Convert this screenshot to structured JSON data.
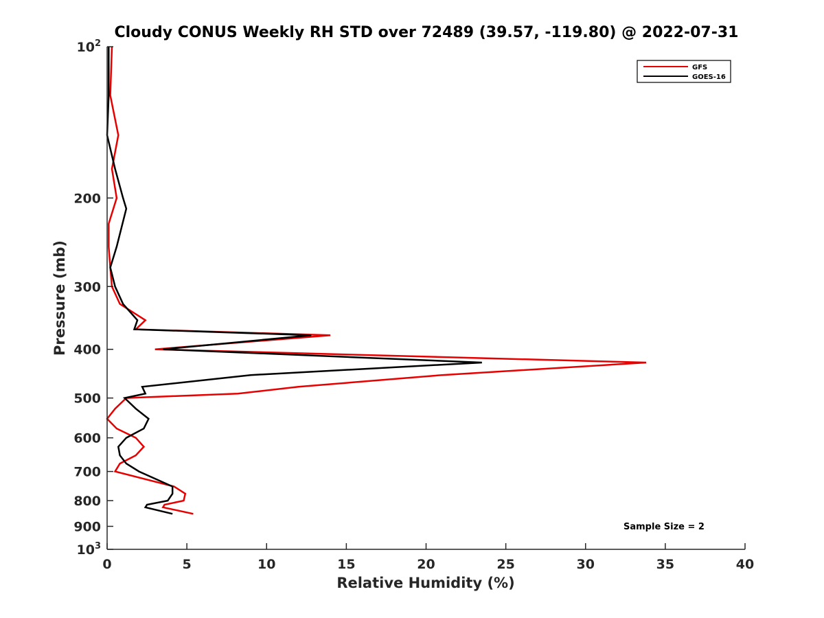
{
  "chart_data": {
    "type": "line",
    "title": "Cloudy CONUS Weekly RH STD over 72489 (39.57, -119.80) @ 2022-07-31",
    "xlabel": "Relative Humidity (%)",
    "ylabel": "Pressure (mb)",
    "xlim": [
      0,
      40
    ],
    "ylim": [
      100,
      1000
    ],
    "yscale": "log",
    "yreversed": true,
    "x_ticks": [
      "0",
      "5",
      "10",
      "15",
      "20",
      "25",
      "30",
      "35",
      "40"
    ],
    "y_ticks": [
      {
        "value": 100,
        "base": "10",
        "exp": "2"
      },
      {
        "value": 200,
        "label": "200"
      },
      {
        "value": 300,
        "label": "300"
      },
      {
        "value": 400,
        "label": "400"
      },
      {
        "value": 500,
        "label": "500"
      },
      {
        "value": 600,
        "label": "600"
      },
      {
        "value": 700,
        "label": "700"
      },
      {
        "value": 800,
        "label": "800"
      },
      {
        "value": 900,
        "label": "900"
      },
      {
        "value": 1000,
        "base": "10",
        "exp": "3"
      }
    ],
    "legend_position": "top-right",
    "grid": false,
    "annotation": "Sample Size = 2",
    "series": [
      {
        "name": "GFS",
        "color": "#e60000",
        "points": [
          [
            0.3,
            100
          ],
          [
            0.2,
            125
          ],
          [
            0.7,
            150
          ],
          [
            0.3,
            175
          ],
          [
            0.6,
            200
          ],
          [
            0.1,
            225
          ],
          [
            0.1,
            250
          ],
          [
            0.2,
            275
          ],
          [
            0.3,
            300
          ],
          [
            0.8,
            325
          ],
          [
            2.4,
            350
          ],
          [
            1.8,
            365
          ],
          [
            14.0,
            375
          ],
          [
            3.0,
            400
          ],
          [
            33.8,
            425
          ],
          [
            21.0,
            450
          ],
          [
            12.0,
            475
          ],
          [
            8.2,
            490
          ],
          [
            1.2,
            500
          ],
          [
            0.5,
            525
          ],
          [
            0.0,
            550
          ],
          [
            0.6,
            575
          ],
          [
            1.8,
            600
          ],
          [
            2.3,
            625
          ],
          [
            1.8,
            650
          ],
          [
            0.8,
            675
          ],
          [
            0.5,
            700
          ],
          [
            4.2,
            750
          ],
          [
            4.9,
            775
          ],
          [
            4.8,
            800
          ],
          [
            3.6,
            815
          ],
          [
            3.5,
            825
          ],
          [
            5.4,
            850
          ]
        ]
      },
      {
        "name": "GOES-16",
        "color": "#000000",
        "points": [
          [
            0.1,
            100
          ],
          [
            0.1,
            125
          ],
          [
            0.0,
            150
          ],
          [
            0.5,
            175
          ],
          [
            1.0,
            200
          ],
          [
            1.2,
            210
          ],
          [
            0.6,
            250
          ],
          [
            0.2,
            275
          ],
          [
            0.5,
            300
          ],
          [
            1.0,
            325
          ],
          [
            1.9,
            350
          ],
          [
            1.7,
            365
          ],
          [
            12.8,
            375
          ],
          [
            3.5,
            400
          ],
          [
            23.5,
            425
          ],
          [
            9.0,
            450
          ],
          [
            2.2,
            475
          ],
          [
            2.4,
            490
          ],
          [
            1.1,
            500
          ],
          [
            1.8,
            525
          ],
          [
            2.6,
            550
          ],
          [
            2.3,
            575
          ],
          [
            1.2,
            600
          ],
          [
            0.7,
            625
          ],
          [
            0.8,
            650
          ],
          [
            1.2,
            675
          ],
          [
            2.0,
            700
          ],
          [
            4.1,
            750
          ],
          [
            4.1,
            775
          ],
          [
            3.8,
            800
          ],
          [
            2.5,
            815
          ],
          [
            2.4,
            825
          ],
          [
            4.1,
            850
          ]
        ]
      }
    ]
  }
}
